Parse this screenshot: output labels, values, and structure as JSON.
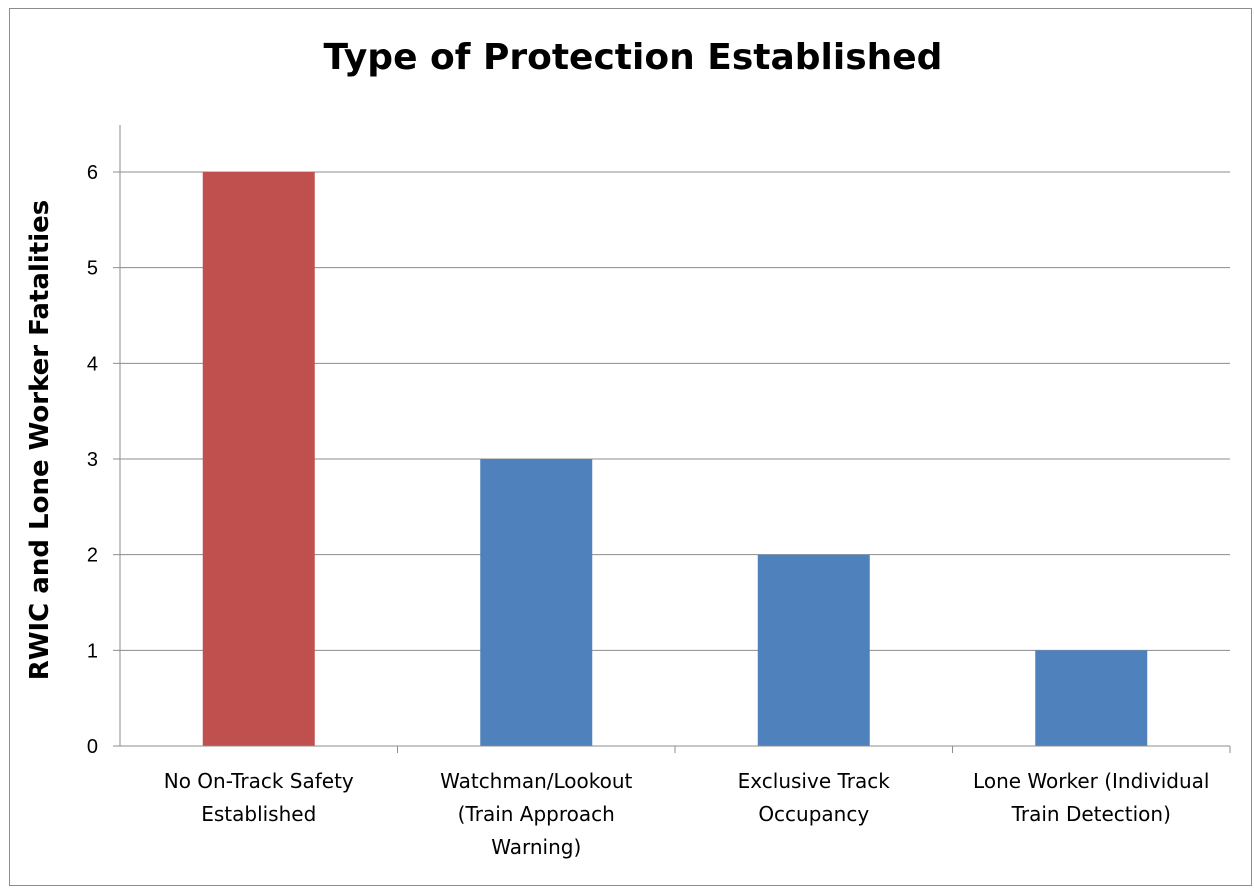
{
  "chart_data": {
    "type": "bar",
    "title": "Type of Protection Established",
    "xlabel": "",
    "ylabel": "RWIC and Lone Worker Fatalities",
    "categories": [
      "No On-Track Safety Established",
      "Watchman/Lookout (Train Approach Warning)",
      "Exclusive Track Occupancy",
      "Lone Worker (Individual Train Detection)"
    ],
    "category_lines": [
      [
        "No On-Track Safety",
        "Established"
      ],
      [
        "Watchman/Lookout",
        "(Train Approach",
        "Warning)"
      ],
      [
        "Exclusive Track",
        "Occupancy"
      ],
      [
        "Lone Worker (Individual",
        "Train Detection)"
      ]
    ],
    "values": [
      6,
      3,
      2,
      1
    ],
    "bar_colors": [
      "#c0504d",
      "#4f81bd",
      "#4f81bd",
      "#4f81bd"
    ],
    "ylim": [
      0,
      6
    ],
    "yticks": [
      "0",
      "1",
      "2",
      "3",
      "4",
      "5",
      "6"
    ],
    "grid": true,
    "legend": "none"
  }
}
